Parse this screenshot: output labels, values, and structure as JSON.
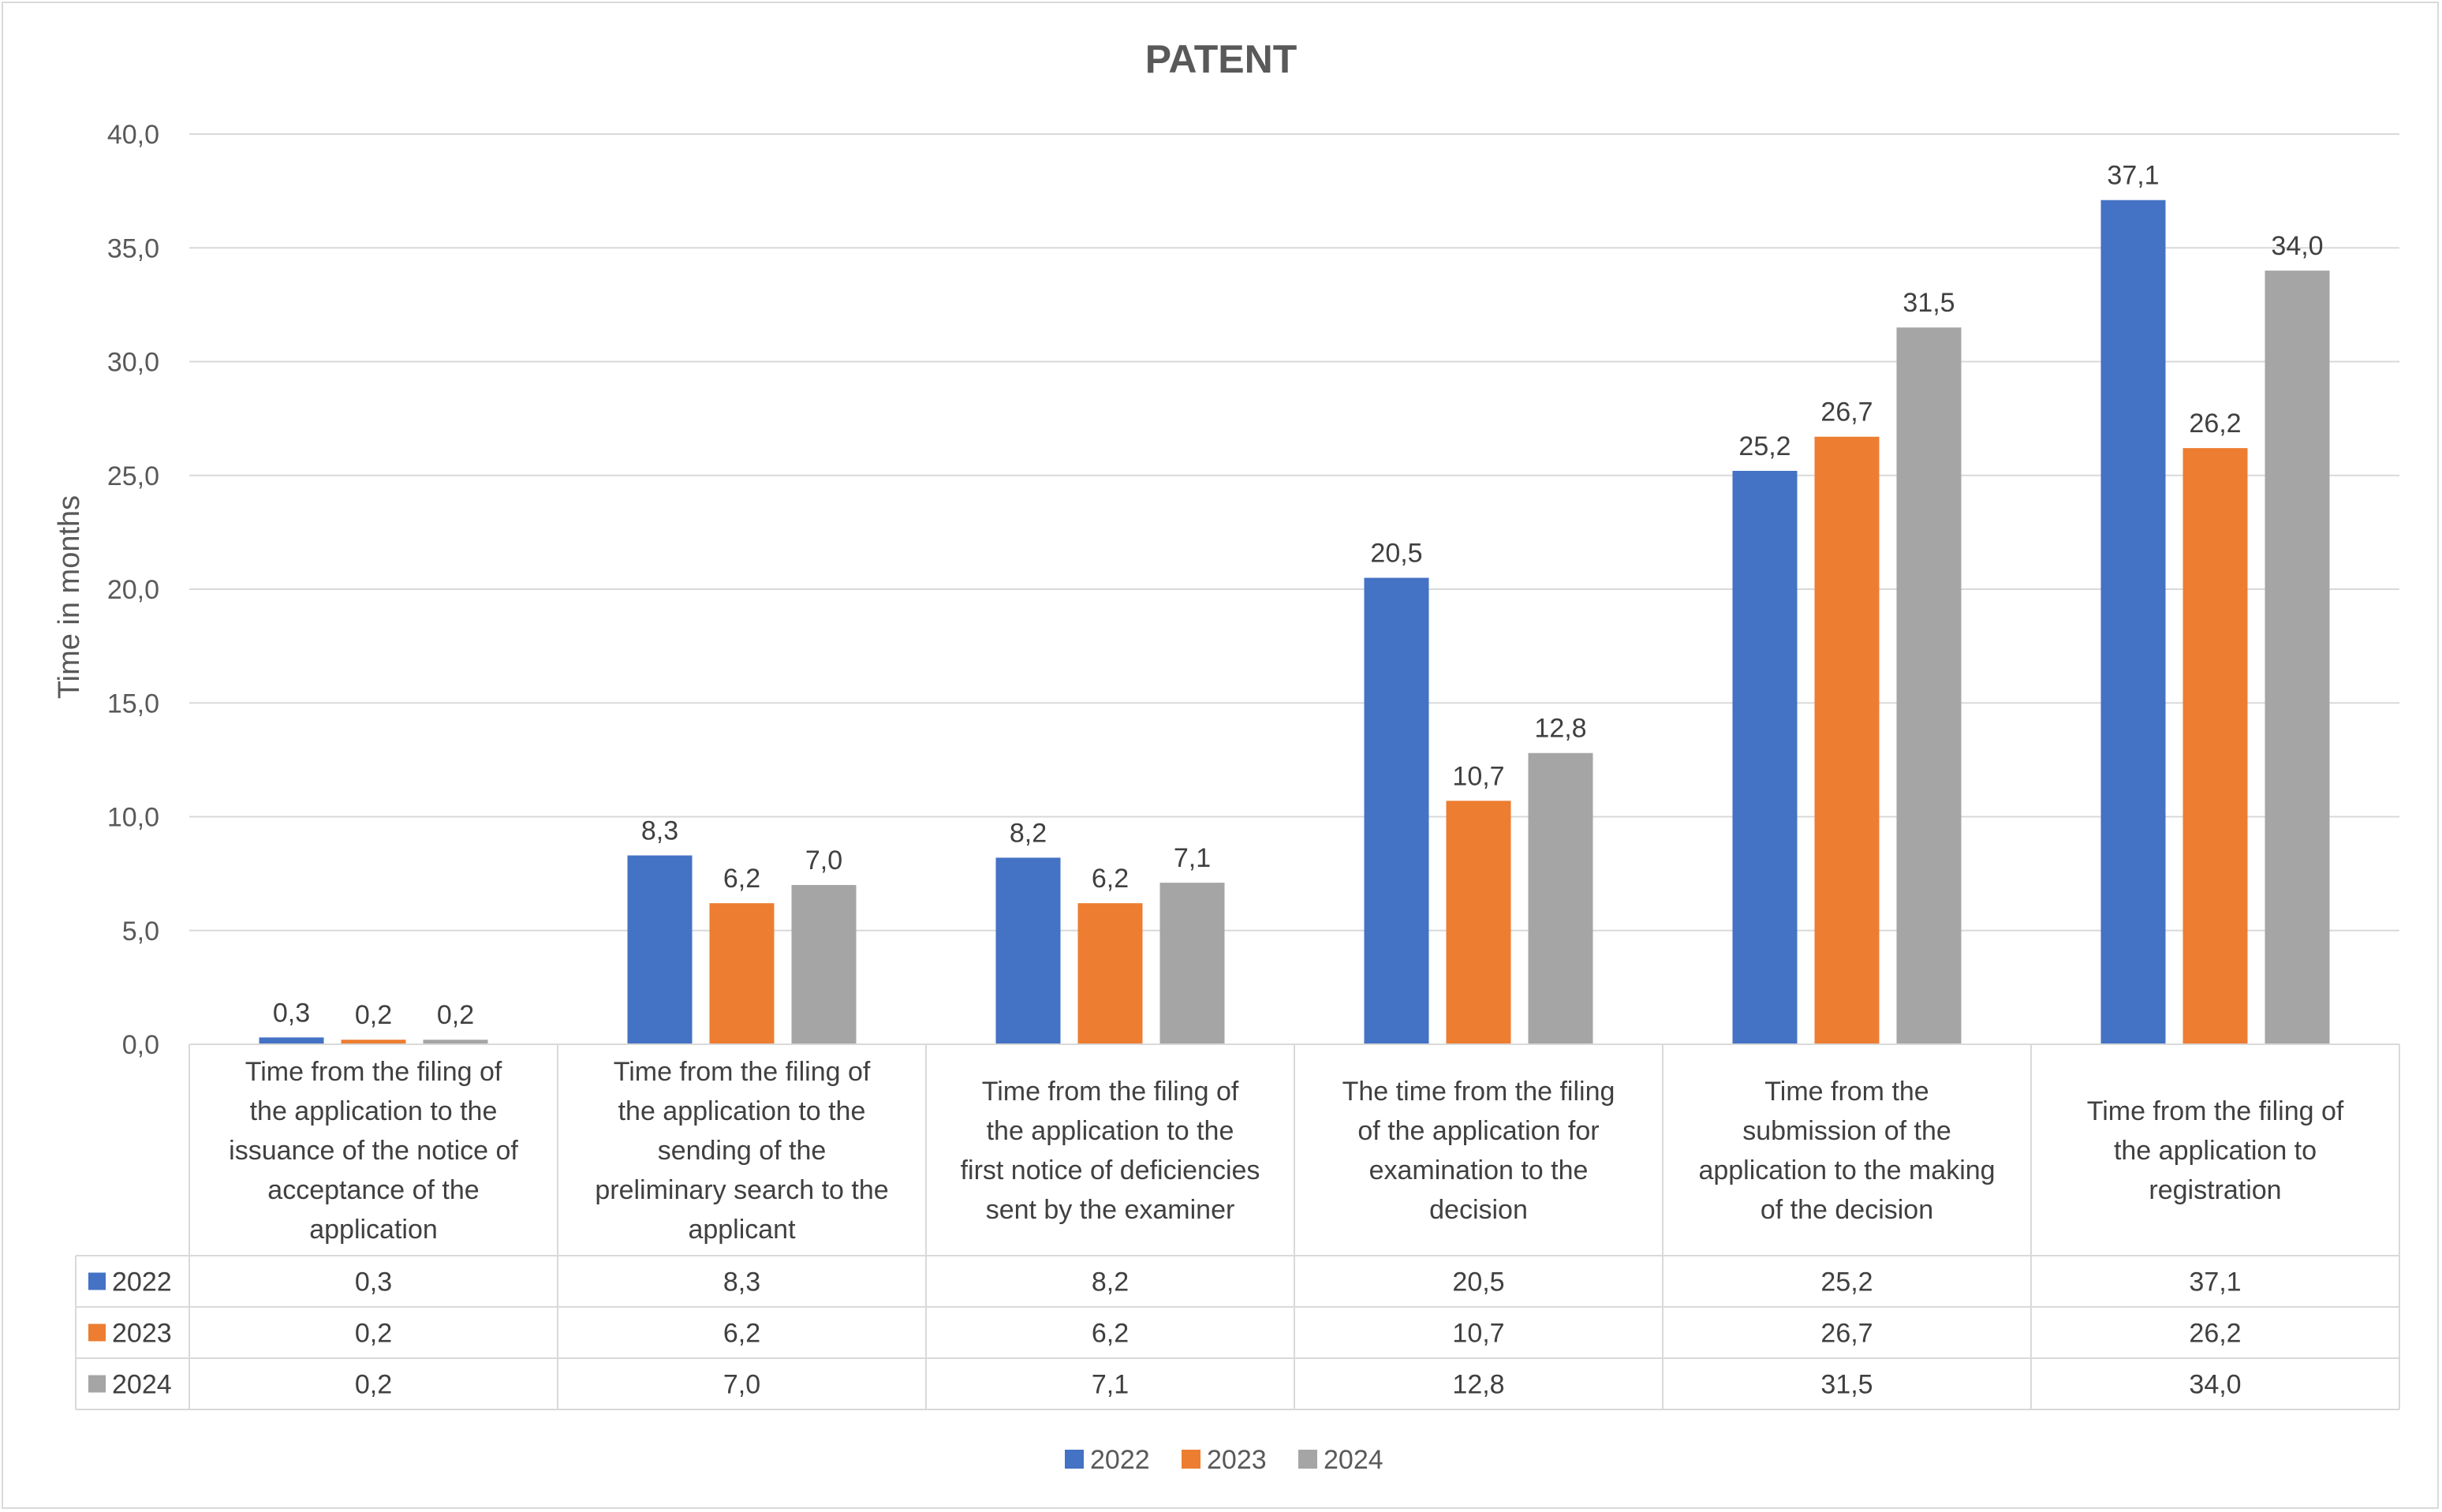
{
  "chart_data": {
    "type": "bar",
    "title": "PATENT",
    "xlabel": "",
    "ylabel": "Time in months",
    "ylim": [
      0,
      40
    ],
    "y_ticks": [
      "0,0",
      "5,0",
      "10,0",
      "15,0",
      "20,0",
      "25,0",
      "30,0",
      "35,0",
      "40,0"
    ],
    "grid": true,
    "legend_position": "bottom",
    "categories": [
      [
        "Time from the filing of",
        "the application to the",
        "issuance of the notice of",
        "acceptance of the",
        "application"
      ],
      [
        "Time from the filing of",
        "the application to the",
        "sending of the",
        "preliminary search to the",
        "applicant"
      ],
      [
        "Time from the filing of",
        "the application to the",
        "first notice of deficiencies",
        "sent by the examiner"
      ],
      [
        "The time from the filing",
        "of the application for",
        "examination to the",
        "decision"
      ],
      [
        "Time from the",
        "submission of the",
        "application to the making",
        "of the decision"
      ],
      [
        "Time from the filing of",
        "the application to",
        "registration"
      ]
    ],
    "series": [
      {
        "name": "2022",
        "color": "#4472C4",
        "values": [
          0.3,
          8.3,
          8.2,
          20.5,
          25.2,
          37.1
        ],
        "labels": [
          "0,3",
          "8,3",
          "8,2",
          "20,5",
          "25,2",
          "37,1"
        ]
      },
      {
        "name": "2023",
        "color": "#ED7D31",
        "values": [
          0.2,
          6.2,
          6.2,
          10.7,
          26.7,
          26.2
        ],
        "labels": [
          "0,2",
          "6,2",
          "6,2",
          "10,7",
          "26,7",
          "26,2"
        ]
      },
      {
        "name": "2024",
        "color": "#A5A5A5",
        "values": [
          0.2,
          7.0,
          7.1,
          12.8,
          31.5,
          34.0
        ],
        "labels": [
          "0,2",
          "7,0",
          "7,1",
          "12,8",
          "31,5",
          "34,0"
        ]
      }
    ]
  }
}
